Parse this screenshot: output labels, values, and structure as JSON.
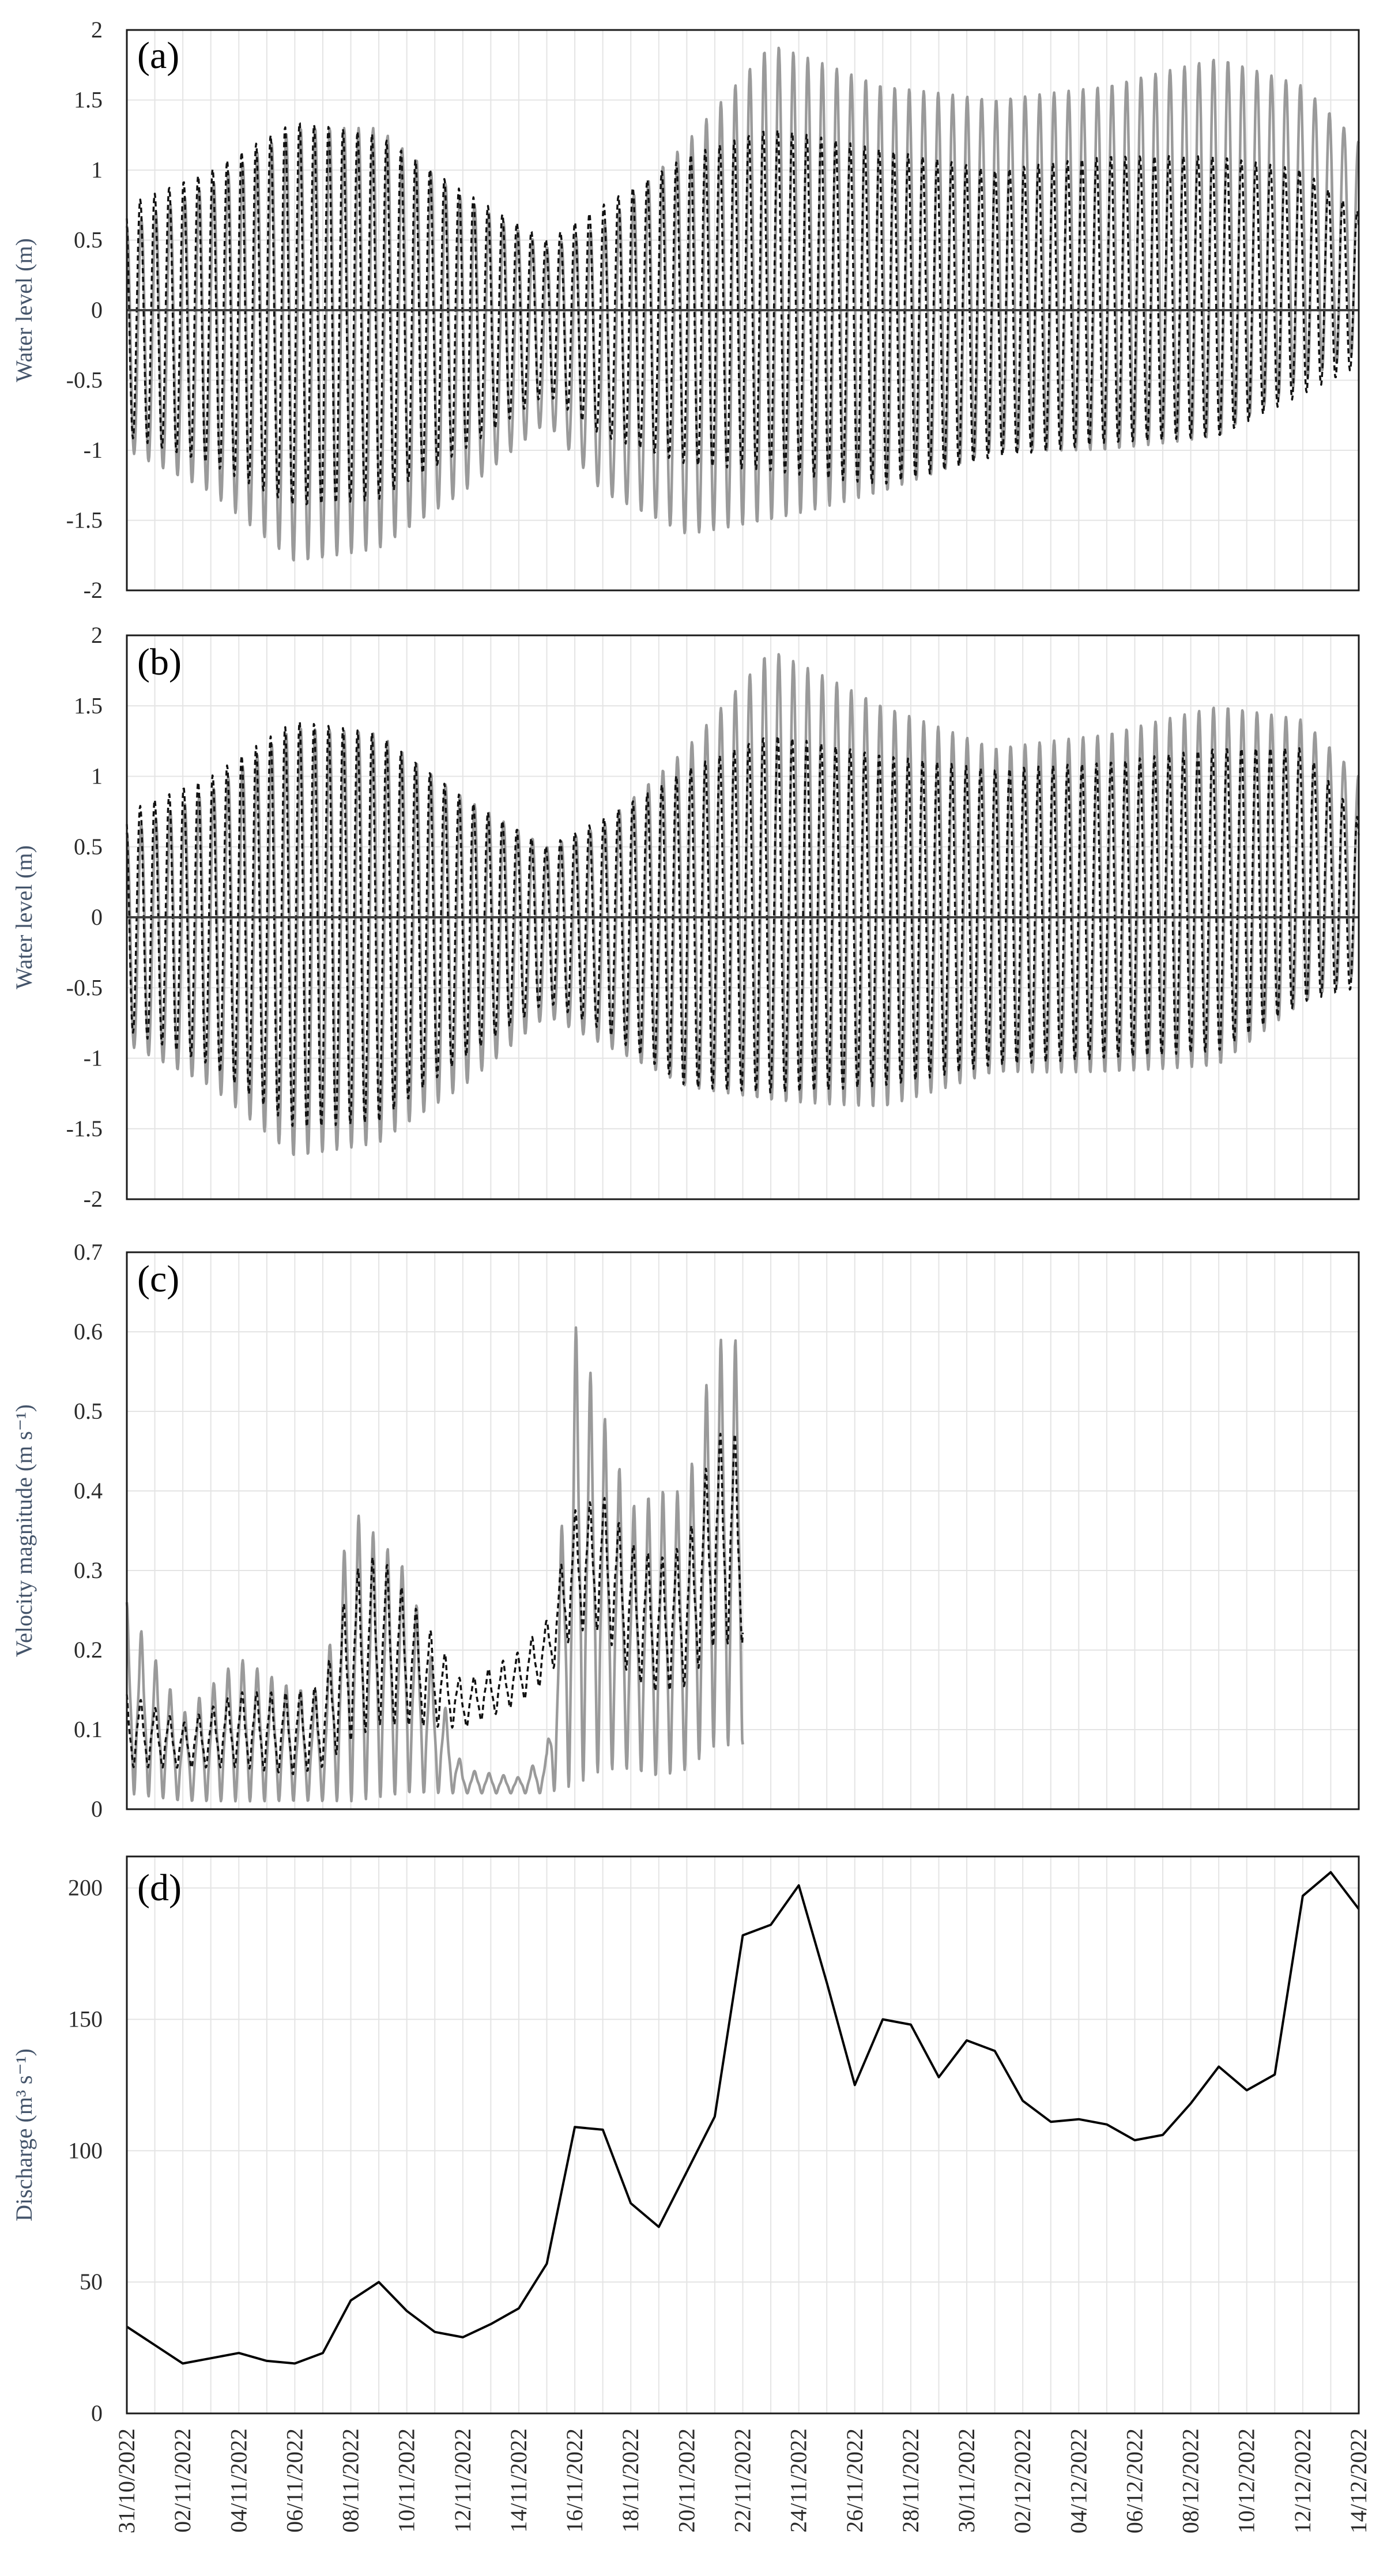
{
  "colors": {
    "observed": "#9a9a9a",
    "modelled": "#111111",
    "discharge": "#000000",
    "zero_line": "#404040",
    "grid": "#e4e4e4"
  },
  "dates": [
    "31/10/2022",
    "02/11/2022",
    "04/11/2022",
    "06/11/2022",
    "08/11/2022",
    "10/11/2022",
    "12/11/2022",
    "14/11/2022",
    "16/11/2022",
    "18/11/2022",
    "20/11/2022",
    "22/11/2022",
    "24/11/2022",
    "26/11/2022",
    "28/11/2022",
    "30/11/2022",
    "02/12/2022",
    "04/12/2022",
    "06/12/2022",
    "08/12/2022",
    "10/12/2022",
    "12/12/2022",
    "14/12/2022"
  ],
  "chart_data": [
    {
      "panel": "(a)",
      "type": "line",
      "ylabel": "Water level (m)",
      "ylim": [
        -2,
        2
      ],
      "yticks": [
        "2",
        "1.5",
        "1",
        "0.5",
        "0",
        "-0.5",
        "-1",
        "-1.5",
        "-2"
      ],
      "xlim": [
        "31/10/2022",
        "14/12/2022"
      ],
      "tidal_period_days": 0.5175,
      "series": [
        {
          "style": "solid-grey",
          "envelope": {
            "x": [
              "31/10/2022",
              "03/11/2022",
              "06/11/2022",
              "09/11/2022",
              "12/11/2022",
              "15/11/2022",
              "17/11/2022",
              "20/11/2022",
              "23/11/2022",
              "27/11/2022",
              "01/12/2022",
              "05/12/2022",
              "09/12/2022",
              "12/12/2022",
              "14/12/2022"
            ],
            "high": [
              0.6,
              0.9,
              1.3,
              1.3,
              0.8,
              0.45,
              0.6,
              1.2,
              1.9,
              1.6,
              1.5,
              1.6,
              1.8,
              1.6,
              1.2
            ],
            "low": [
              -1.0,
              -1.3,
              -1.8,
              -1.7,
              -1.3,
              -0.8,
              -1.3,
              -1.6,
              -1.5,
              -1.3,
              -1.0,
              -1.0,
              -0.9,
              -0.5,
              -0.3
            ]
          }
        },
        {
          "style": "dashed-black",
          "envelope": {
            "x": [
              "31/10/2022",
              "03/11/2022",
              "06/11/2022",
              "09/11/2022",
              "12/11/2022",
              "15/11/2022",
              "17/11/2022",
              "20/11/2022",
              "23/11/2022",
              "27/11/2022",
              "01/12/2022",
              "05/12/2022",
              "09/12/2022",
              "12/12/2022",
              "14/12/2022"
            ],
            "high": [
              0.75,
              1.0,
              1.35,
              1.25,
              0.85,
              0.5,
              0.75,
              1.1,
              1.3,
              1.15,
              1.0,
              1.1,
              1.1,
              1.0,
              0.7
            ],
            "low": [
              -0.9,
              -1.1,
              -1.4,
              -1.35,
              -1.0,
              -0.6,
              -0.9,
              -1.1,
              -1.15,
              -1.25,
              -1.05,
              -0.95,
              -0.9,
              -0.6,
              -0.4
            ]
          }
        }
      ]
    },
    {
      "panel": "(b)",
      "type": "line",
      "ylabel": "Water level (m)",
      "ylim": [
        -2,
        2
      ],
      "yticks": [
        "2",
        "1.5",
        "1",
        "0.5",
        "0",
        "-0.5",
        "-1",
        "-1.5",
        "-2"
      ],
      "xlim": [
        "31/10/2022",
        "14/12/2022"
      ],
      "tidal_period_days": 0.5175,
      "series": [
        {
          "style": "solid-grey",
          "envelope": {
            "x": [
              "31/10/2022",
              "03/11/2022",
              "06/11/2022",
              "09/11/2022",
              "12/11/2022",
              "15/11/2022",
              "17/11/2022",
              "20/11/2022",
              "23/11/2022",
              "27/11/2022",
              "01/12/2022",
              "05/12/2022",
              "09/12/2022",
              "12/12/2022",
              "14/12/2022"
            ],
            "high": [
              0.6,
              0.9,
              1.35,
              1.3,
              0.85,
              0.5,
              0.65,
              1.2,
              1.9,
              1.5,
              1.2,
              1.3,
              1.5,
              1.4,
              1.0
            ],
            "low": [
              -0.9,
              -1.2,
              -1.7,
              -1.6,
              -1.2,
              -0.7,
              -0.9,
              -1.2,
              -1.3,
              -1.35,
              -1.1,
              -1.1,
              -1.05,
              -0.6,
              -0.4
            ]
          }
        },
        {
          "style": "dashed-black",
          "envelope": {
            "x": [
              "31/10/2022",
              "03/11/2022",
              "06/11/2022",
              "09/11/2022",
              "12/11/2022",
              "15/11/2022",
              "17/11/2022",
              "20/11/2022",
              "23/11/2022",
              "27/11/2022",
              "01/12/2022",
              "05/12/2022",
              "09/12/2022",
              "12/12/2022",
              "14/12/2022"
            ],
            "high": [
              0.75,
              1.0,
              1.4,
              1.3,
              0.85,
              0.5,
              0.7,
              1.05,
              1.3,
              1.15,
              1.05,
              1.1,
              1.2,
              1.2,
              0.7
            ],
            "low": [
              -0.8,
              -1.05,
              -1.5,
              -1.45,
              -1.0,
              -0.6,
              -0.8,
              -1.2,
              -1.25,
              -1.2,
              -1.05,
              -1.0,
              -0.95,
              -0.6,
              -0.5
            ]
          }
        }
      ]
    },
    {
      "panel": "(c)",
      "type": "line",
      "ylabel": "Velocity magnitude (m s⁻¹)",
      "ylim": [
        0,
        0.7
      ],
      "yticks": [
        "0.7",
        "0.6",
        "0.5",
        "0.4",
        "0.3",
        "0.2",
        "0.1",
        "0"
      ],
      "xlim": [
        "31/10/2022",
        "14/12/2022"
      ],
      "data_end": "22/11/2022",
      "series": [
        {
          "style": "solid-grey",
          "envelope": {
            "x": [
              "31/10/2022",
              "02/11/2022",
              "04/11/2022",
              "06/11/2022",
              "07/11/2022",
              "08/11/2022",
              "10/11/2022",
              "12/11/2022",
              "14/11/2022",
              "15/11/2022",
              "16/11/2022",
              "17/11/2022",
              "18/11/2022",
              "19/11/2022",
              "20/11/2022",
              "21/11/2022",
              "22/11/2022"
            ],
            "high": [
              0.26,
              0.12,
              0.19,
              0.15,
              0.15,
              0.38,
              0.3,
              0.05,
              0.04,
              0.07,
              0.61,
              0.5,
              0.38,
              0.4,
              0.4,
              0.59,
              0.59
            ],
            "low": [
              0.02,
              0.01,
              0.01,
              0.01,
              0.01,
              0.01,
              0.02,
              0.02,
              0.02,
              0.02,
              0.03,
              0.05,
              0.05,
              0.04,
              0.05,
              0.08,
              0.08
            ]
          }
        },
        {
          "style": "dashed-black",
          "envelope": {
            "x": [
              "31/10/2022",
              "02/11/2022",
              "04/11/2022",
              "06/11/2022",
              "07/11/2022",
              "08/11/2022",
              "09/11/2022",
              "11/11/2022",
              "12/11/2022",
              "14/11/2022",
              "15/11/2022",
              "16/11/2022",
              "17/11/2022",
              "18/11/2022",
              "19/11/2022",
              "20/11/2022",
              "21/11/2022",
              "22/11/2022"
            ],
            "high": [
              0.15,
              0.11,
              0.15,
              0.15,
              0.16,
              0.3,
              0.33,
              0.22,
              0.16,
              0.2,
              0.24,
              0.38,
              0.4,
              0.34,
              0.32,
              0.34,
              0.48,
              0.48
            ],
            "low": [
              0.05,
              0.05,
              0.05,
              0.04,
              0.05,
              0.08,
              0.1,
              0.1,
              0.1,
              0.13,
              0.16,
              0.22,
              0.22,
              0.16,
              0.14,
              0.15,
              0.2,
              0.2
            ]
          }
        }
      ]
    },
    {
      "panel": "(d)",
      "type": "line",
      "ylabel": "Discharge (m³ s⁻¹)",
      "ylim": [
        0,
        212
      ],
      "yticks": [
        "200",
        "150",
        "100",
        "50",
        "0"
      ],
      "xlim": [
        "31/10/2022",
        "14/12/2022"
      ],
      "series": [
        {
          "style": "solid-black",
          "x": [
            "31/10/2022",
            "01/11/2022",
            "02/11/2022",
            "03/11/2022",
            "04/11/2022",
            "05/11/2022",
            "06/11/2022",
            "07/11/2022",
            "08/11/2022",
            "09/11/2022",
            "10/11/2022",
            "11/11/2022",
            "12/11/2022",
            "13/11/2022",
            "14/11/2022",
            "15/11/2022",
            "16/11/2022",
            "17/11/2022",
            "18/11/2022",
            "19/11/2022",
            "20/11/2022",
            "21/11/2022",
            "22/11/2022",
            "23/11/2022",
            "24/11/2022",
            "25/11/2022",
            "26/11/2022",
            "27/11/2022",
            "28/11/2022",
            "29/11/2022",
            "30/11/2022",
            "01/12/2022",
            "02/12/2022",
            "03/12/2022",
            "04/12/2022",
            "05/12/2022",
            "06/12/2022",
            "07/12/2022",
            "08/12/2022",
            "09/12/2022",
            "10/12/2022",
            "11/12/2022",
            "12/12/2022",
            "13/12/2022",
            "14/12/2022"
          ],
          "values": [
            33,
            26,
            19,
            21,
            23,
            20,
            19,
            23,
            43,
            50,
            39,
            31,
            29,
            34,
            40,
            57,
            109,
            108,
            80,
            71,
            92,
            113,
            182,
            186,
            201,
            164,
            125,
            150,
            148,
            128,
            142,
            138,
            119,
            111,
            112,
            110,
            104,
            106,
            118,
            132,
            123,
            129,
            197,
            206,
            192
          ]
        }
      ]
    }
  ]
}
